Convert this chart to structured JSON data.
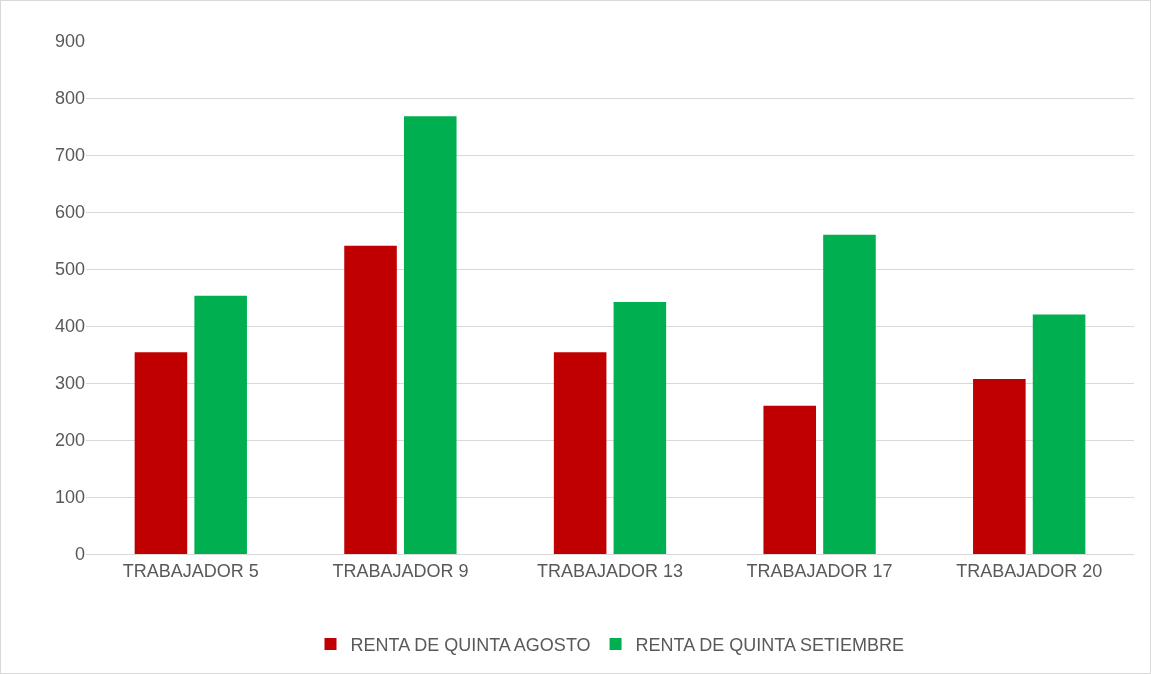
{
  "chart_data": {
    "type": "bar",
    "categories": [
      "TRABAJADOR 5",
      "TRABAJADOR 9",
      "TRABAJADOR 13",
      "TRABAJADOR 17",
      "TRABAJADOR 20"
    ],
    "series": [
      {
        "name": "RENTA DE QUINTA AGOSTO",
        "color": "#c00000",
        "values": [
          354,
          541,
          354,
          260,
          307
        ]
      },
      {
        "name": "RENTA DE QUINTA SETIEMBRE",
        "color": "#00b050",
        "values": [
          453,
          768,
          442,
          560,
          420
        ]
      }
    ],
    "ylim": [
      0,
      900
    ],
    "yticks": [
      0,
      100,
      200,
      300,
      400,
      500,
      600,
      700,
      800,
      900
    ],
    "grid": "y",
    "legend": "bottom"
  }
}
